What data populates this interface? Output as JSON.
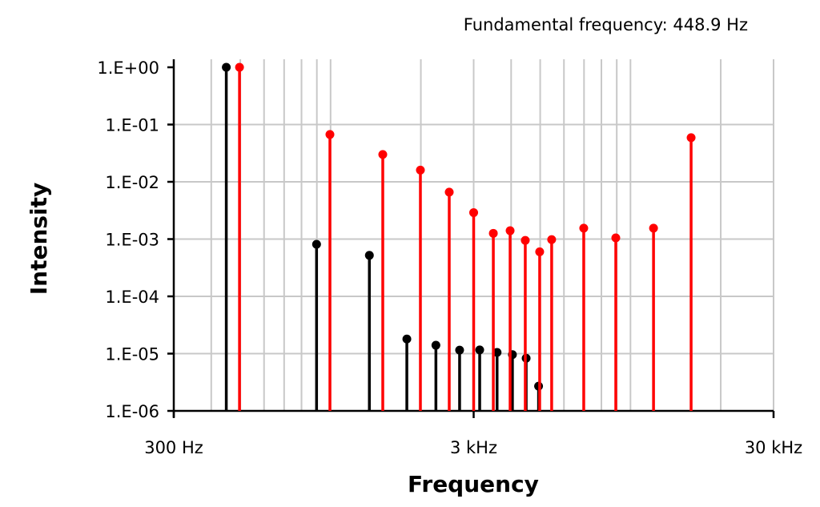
{
  "chart_data": {
    "type": "stem",
    "annotation": "Fundamental frequency: 448.9 Hz",
    "xlabel": "Frequency",
    "ylabel": "Intensity",
    "x_scale": "log",
    "y_scale": "log",
    "xlim": [
      300,
      30000
    ],
    "ylim": [
      1e-06,
      1
    ],
    "x_ticks": [
      {
        "value": 300,
        "label": "300 Hz"
      },
      {
        "value": 3000,
        "label": "3 kHz"
      },
      {
        "value": 30000,
        "label": "30 kHz"
      }
    ],
    "y_ticks": [
      {
        "value": 1,
        "label": "1.E+00"
      },
      {
        "value": 0.1,
        "label": "1.E-01"
      },
      {
        "value": 0.01,
        "label": "1.E-02"
      },
      {
        "value": 0.001,
        "label": "1.E-03"
      },
      {
        "value": 0.0001,
        "label": "1.E-04"
      },
      {
        "value": 1e-05,
        "label": "1.E-05"
      },
      {
        "value": 1e-06,
        "label": "1.E-06"
      }
    ],
    "grid": true,
    "series": [
      {
        "color": "#000000",
        "x": [
          449,
          898,
          1347,
          1796,
          2245,
          2693,
          3142,
          3591,
          4040,
          4489,
          4938
        ],
        "y": [
          1.0,
          0.00081,
          0.00052,
          1.8e-05,
          1.4e-05,
          1.15e-05,
          1.16e-05,
          1.05e-05,
          9.6e-06,
          8.3e-06,
          2.7e-06
        ]
      },
      {
        "color": "#ff0000",
        "x": [
          497,
          995,
          1493,
          1993,
          2487,
          3000,
          3489,
          3969,
          4459,
          4980,
          5460,
          6985,
          8934,
          11937,
          15930
        ],
        "y": [
          1.0,
          0.067,
          0.03,
          0.016,
          0.0066,
          0.0029,
          0.00126,
          0.0014,
          0.00095,
          0.0006,
          0.00098,
          0.00155,
          0.00105,
          0.00155,
          0.059
        ]
      }
    ]
  }
}
